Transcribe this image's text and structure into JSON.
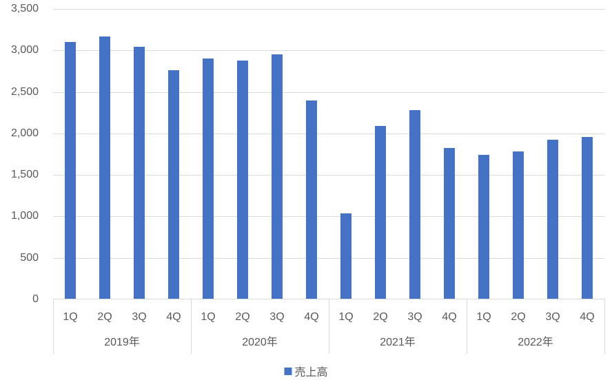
{
  "chart_data": {
    "type": "bar",
    "title": "",
    "xlabel": "",
    "ylabel": "",
    "ylim": [
      0,
      3500
    ],
    "ytick_interval": 500,
    "ytick_labels": [
      "0",
      "500",
      "1,000",
      "1,500",
      "2,000",
      "2,500",
      "3,000",
      "3,500"
    ],
    "grid": true,
    "legend_position": "bottom",
    "legend": [
      "売上高"
    ],
    "groups": [
      "2019年",
      "2020年",
      "2021年",
      "2022年"
    ],
    "quarters": [
      "1Q",
      "2Q",
      "3Q",
      "4Q"
    ],
    "categories": [
      "2019年 1Q",
      "2019年 2Q",
      "2019年 3Q",
      "2019年 4Q",
      "2020年 1Q",
      "2020年 2Q",
      "2020年 3Q",
      "2020年 4Q",
      "2021年 1Q",
      "2021年 2Q",
      "2021年 3Q",
      "2021年 4Q",
      "2022年 1Q",
      "2022年 2Q",
      "2022年 3Q",
      "2022年 4Q"
    ],
    "series": [
      {
        "name": "売上高",
        "values": [
          3100,
          3170,
          3045,
          2765,
          2900,
          2875,
          2955,
          2395,
          1040,
          2090,
          2285,
          1825,
          1745,
          1785,
          1925,
          1960
        ]
      }
    ],
    "colors": {
      "bar": "#4472C4",
      "gridline": "#D9D9D9",
      "axis_line": "#D9D9D9",
      "label": "#595959",
      "background": "#FFFFFF"
    }
  }
}
